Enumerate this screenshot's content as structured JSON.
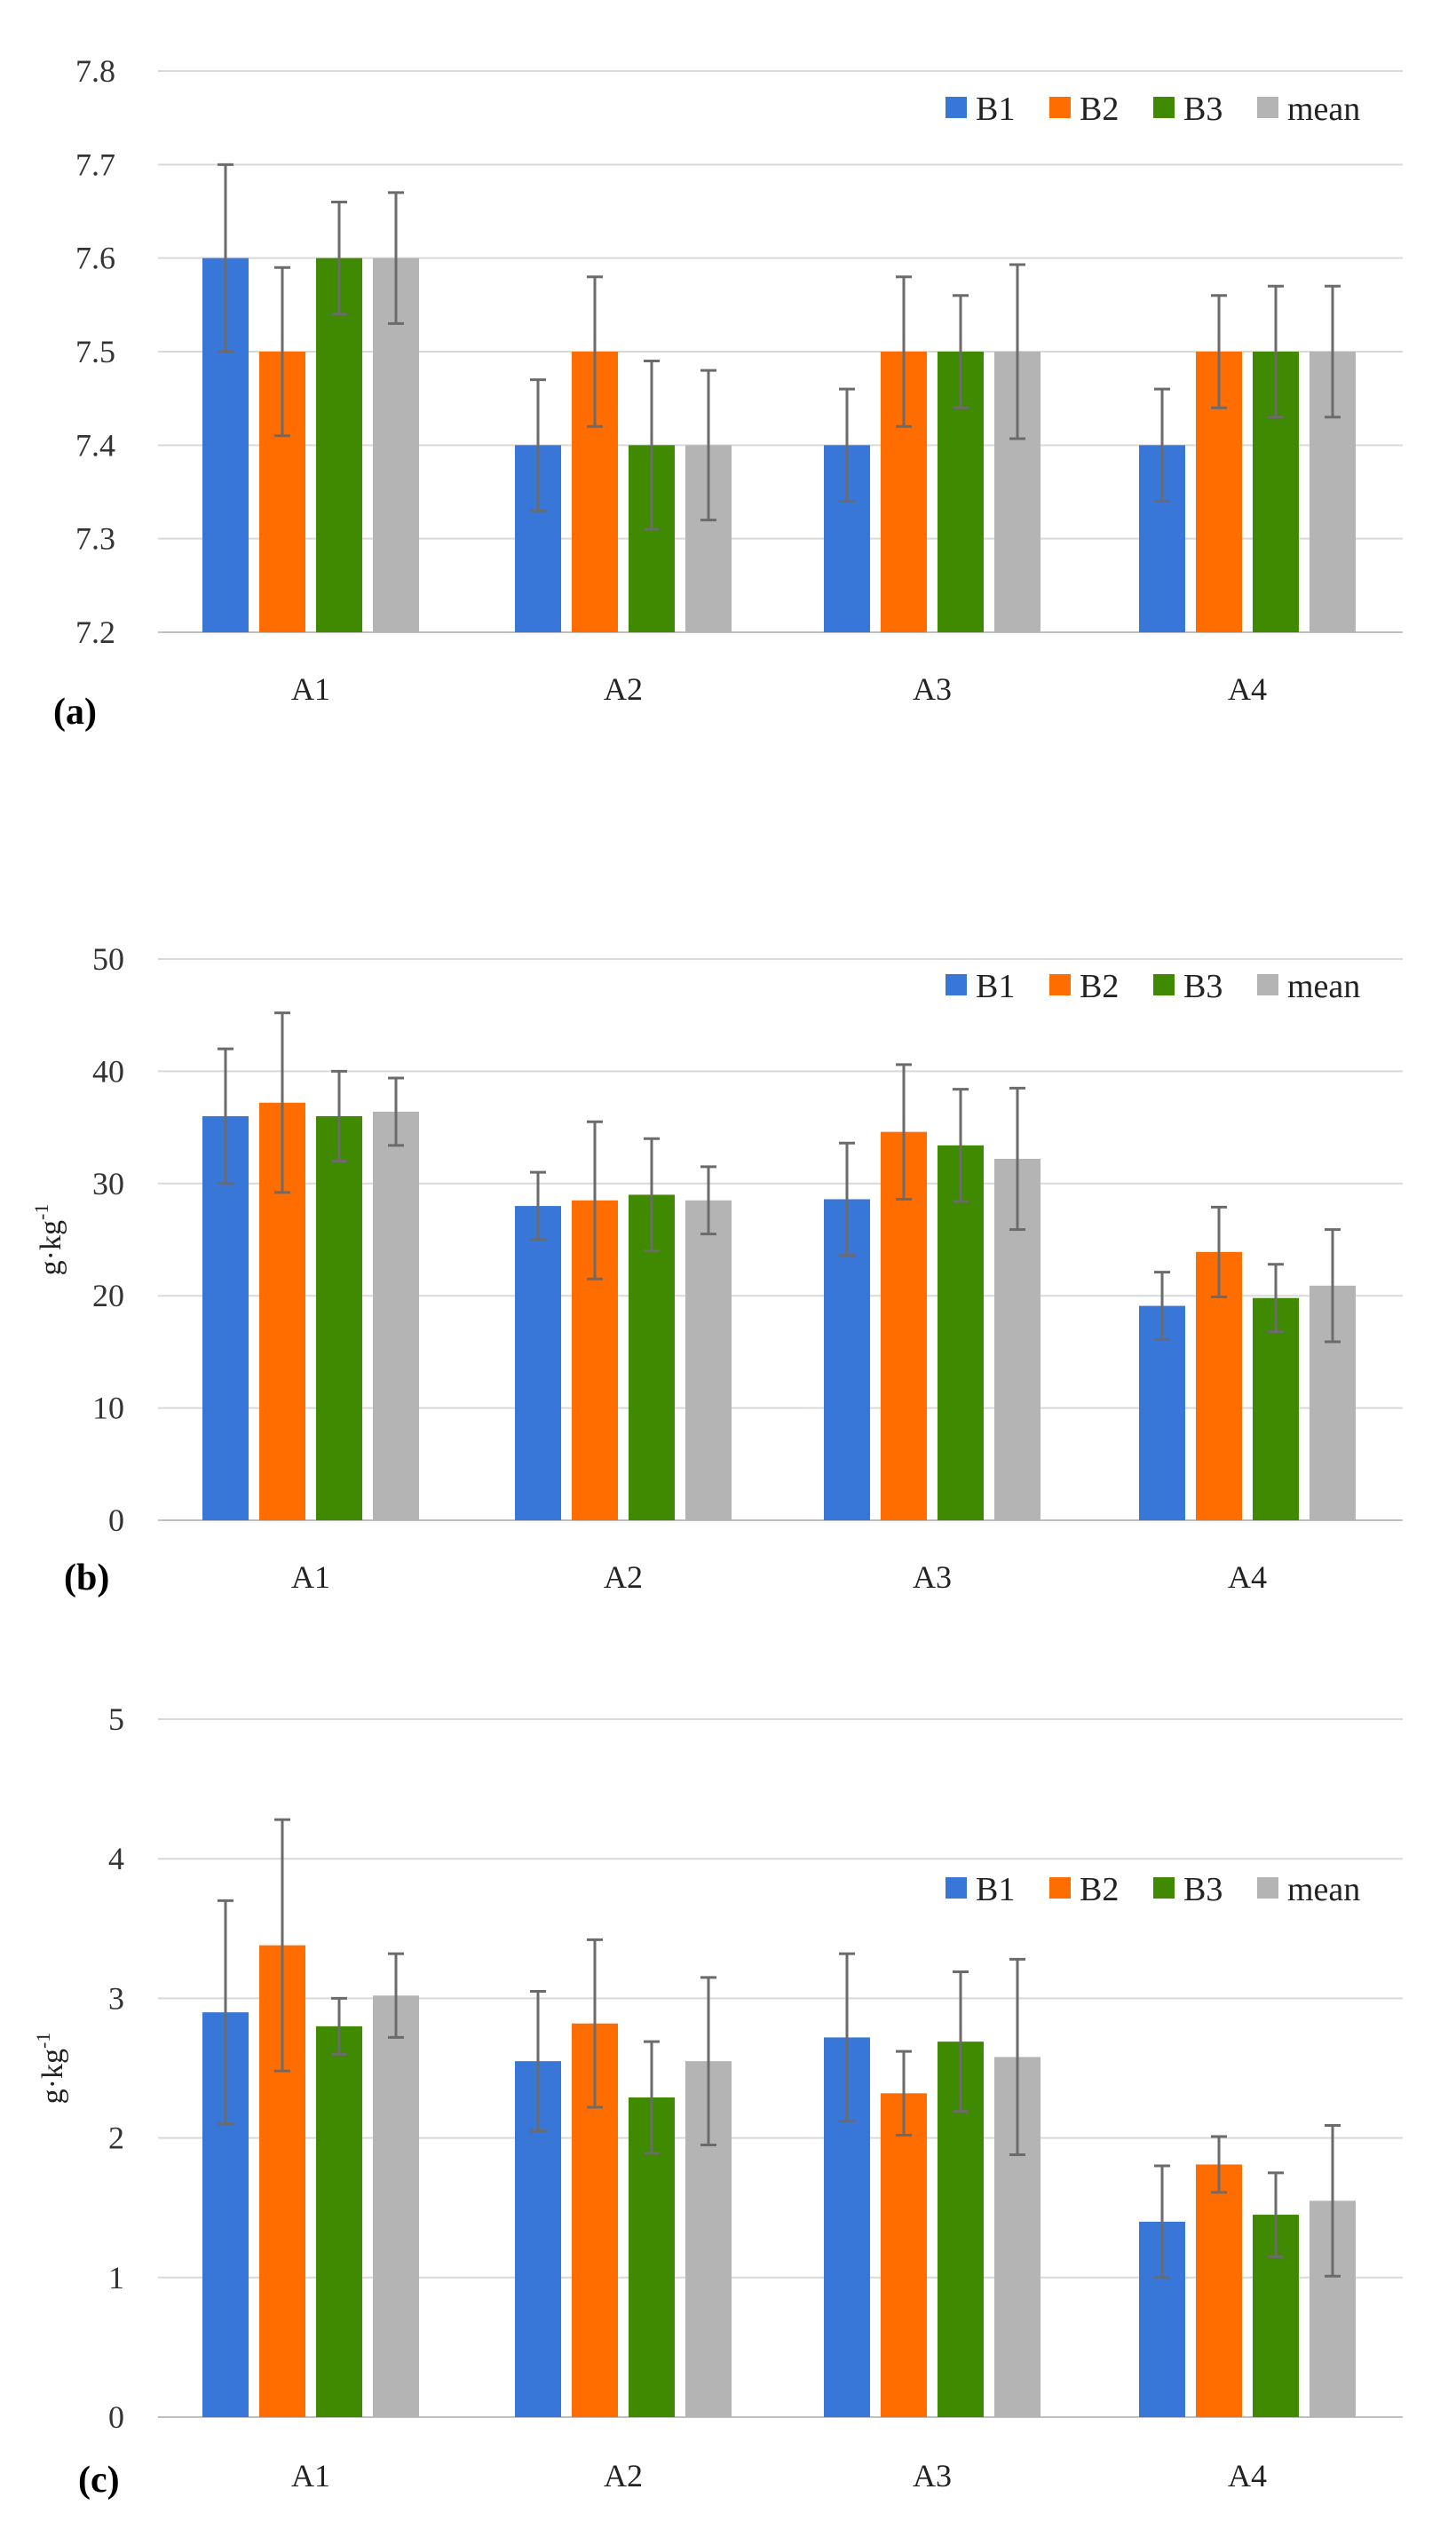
{
  "colors": {
    "B1": "#3876d8",
    "B2": "#ff6d00",
    "B3": "#3f8a00",
    "mean": "#b4b4b4",
    "error_bar": "#6b6b6b"
  },
  "legend": [
    "B1",
    "B2",
    "B3",
    "mean"
  ],
  "chart_data": [
    {
      "type": "bar",
      "panel_label": "(a)",
      "ylabel": "",
      "ylim": [
        7.2,
        7.8
      ],
      "yticks": [
        "7.2",
        "7.3",
        "7.4",
        "7.5",
        "7.6",
        "7.7",
        "7.8"
      ],
      "grid": true,
      "legend_position": "top-right",
      "categories": [
        "A1",
        "A2",
        "A3",
        "A4"
      ],
      "series": [
        {
          "name": "B1",
          "values": [
            7.6,
            7.4,
            7.4,
            7.4
          ],
          "errors": [
            0.1,
            0.07,
            0.06,
            0.06
          ]
        },
        {
          "name": "B2",
          "values": [
            7.5,
            7.5,
            7.5,
            7.5
          ],
          "errors": [
            0.09,
            0.08,
            0.08,
            0.06
          ]
        },
        {
          "name": "B3",
          "values": [
            7.6,
            7.4,
            7.5,
            7.5
          ],
          "errors": [
            0.06,
            0.09,
            0.06,
            0.07
          ]
        },
        {
          "name": "mean",
          "values": [
            7.6,
            7.4,
            7.5,
            7.5
          ],
          "errors": [
            0.07,
            0.08,
            0.093,
            0.07
          ]
        }
      ]
    },
    {
      "type": "bar",
      "panel_label": "(b)",
      "ylabel": "g·kg",
      "ylabel_sup": "-1",
      "ylim": [
        0,
        50
      ],
      "yticks": [
        "0",
        "10",
        "20",
        "30",
        "40",
        "50"
      ],
      "grid": true,
      "legend_position": "top-right",
      "categories": [
        "A1",
        "A2",
        "A3",
        "A4"
      ],
      "series": [
        {
          "name": "B1",
          "values": [
            36.0,
            28.0,
            28.6,
            19.1
          ],
          "errors": [
            6.0,
            3.0,
            5.0,
            3.0
          ]
        },
        {
          "name": "B2",
          "values": [
            37.2,
            28.5,
            34.6,
            23.9
          ],
          "errors": [
            8.0,
            7.0,
            6.0,
            4.0
          ]
        },
        {
          "name": "B3",
          "values": [
            36.0,
            29.0,
            33.4,
            19.8
          ],
          "errors": [
            4.0,
            5.0,
            5.0,
            3.0
          ]
        },
        {
          "name": "mean",
          "values": [
            36.4,
            28.5,
            32.2,
            20.9
          ],
          "errors": [
            3.0,
            3.0,
            6.3,
            5.0
          ]
        }
      ]
    },
    {
      "type": "bar",
      "panel_label": "(c)",
      "ylabel": "g·kg",
      "ylabel_sup": "-1",
      "ylim": [
        0,
        5
      ],
      "yticks": [
        "0",
        "1",
        "2",
        "3",
        "4",
        "5"
      ],
      "grid": true,
      "legend_position": "top-right",
      "categories": [
        "A1",
        "A2",
        "A3",
        "A4"
      ],
      "series": [
        {
          "name": "B1",
          "values": [
            2.9,
            2.55,
            2.72,
            1.4
          ],
          "errors": [
            0.8,
            0.5,
            0.6,
            0.4
          ]
        },
        {
          "name": "B2",
          "values": [
            3.38,
            2.82,
            2.32,
            1.81
          ],
          "errors": [
            0.9,
            0.6,
            0.3,
            0.2
          ]
        },
        {
          "name": "B3",
          "values": [
            2.8,
            2.29,
            2.69,
            1.45
          ],
          "errors": [
            0.2,
            0.4,
            0.5,
            0.3
          ]
        },
        {
          "name": "mean",
          "values": [
            3.02,
            2.55,
            2.58,
            1.55
          ],
          "errors": [
            0.3,
            0.6,
            0.7,
            0.54
          ]
        }
      ]
    }
  ]
}
